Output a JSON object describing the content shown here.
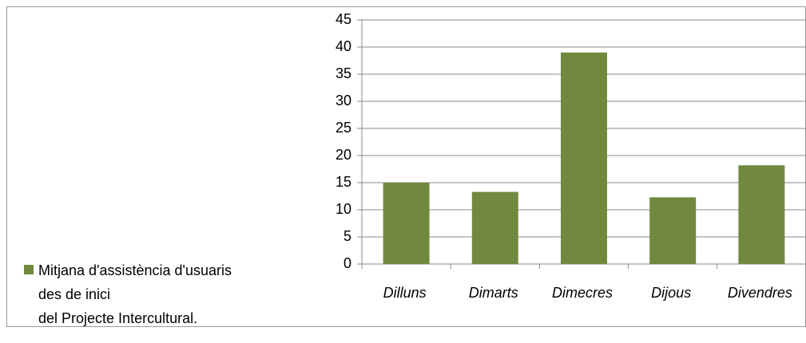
{
  "chart_data": {
    "type": "bar",
    "categories": [
      "Dilluns",
      "Dimarts",
      "Dimecres",
      "Dijous",
      "Divendres"
    ],
    "series": [
      {
        "name": "Mitjana d'assistència d'usuaris\ndes de inici\ndel Projecte Intercultural.",
        "color": "#71893f",
        "values": [
          15,
          13.3,
          39,
          12.3,
          18.2
        ]
      }
    ],
    "ylim": [
      0,
      45
    ],
    "yticks": [
      0,
      5,
      10,
      15,
      20,
      25,
      30,
      35,
      40,
      45
    ],
    "grid": true,
    "legend": "left"
  }
}
